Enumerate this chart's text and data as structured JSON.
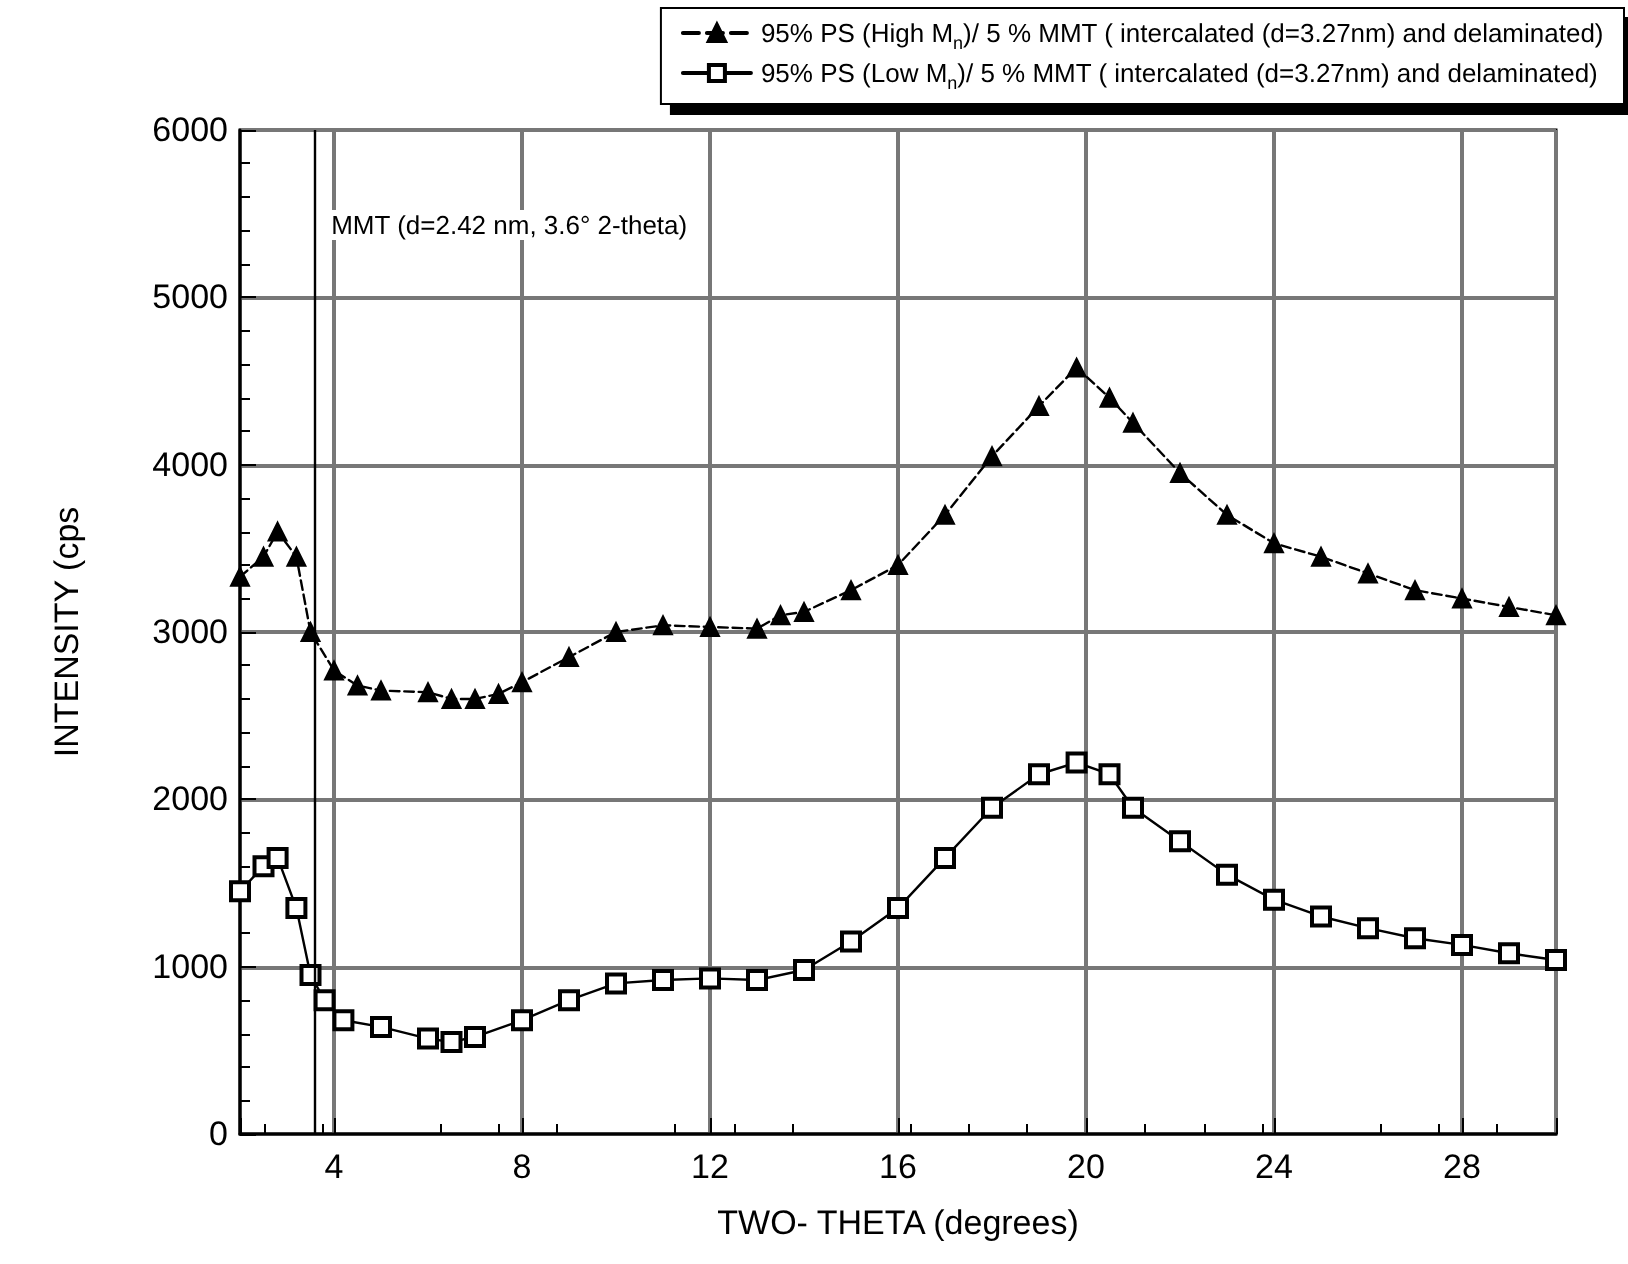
{
  "chart_data": {
    "type": "line",
    "xlabel": "TWO- THETA (degrees)",
    "ylabel": "INTENSITY (cps",
    "xlim": [
      2,
      30
    ],
    "xticks": [
      {
        "value": 2,
        "label": null
      },
      4,
      8,
      12,
      16,
      20,
      24,
      28,
      {
        "value": 30,
        "label": null
      }
    ],
    "ylim": [
      0,
      6000
    ],
    "yticks": [
      0,
      1000,
      2000,
      3000,
      4000,
      5000,
      6000
    ],
    "grid": true,
    "legend": "top right",
    "ref_lines": [
      {
        "axis": "x",
        "value": 3.6,
        "label": "MMT (d=2.42 nm, 3.6° 2-theta)"
      }
    ],
    "series": [
      {
        "name": "95% PS (High M$_{n}$)/ 5 % MMT ( intercalated (d=3.27nm) and delaminated)",
        "color": "#000000",
        "marker": "triangle",
        "line_style": "dashed",
        "x": [
          2.0,
          2.5,
          2.8,
          3.2,
          3.5,
          4.0,
          4.5,
          5,
          6,
          6.5,
          7,
          7.5,
          8,
          9,
          10,
          11,
          12,
          13,
          13.5,
          14,
          15,
          16,
          17,
          18,
          19,
          19.8,
          20.5,
          21,
          22,
          23,
          24,
          25,
          26,
          27,
          28,
          29,
          30
        ],
        "values": [
          3330,
          3450,
          3600,
          3450,
          3000,
          2770,
          2680,
          2650,
          2640,
          2600,
          2600,
          2630,
          2700,
          2850,
          3000,
          3040,
          3030,
          3020,
          3100,
          3120,
          3250,
          3400,
          3700,
          4050,
          4350,
          4580,
          4400,
          4250,
          3950,
          3700,
          3530,
          3450,
          3350,
          3250,
          3200,
          3150,
          3100
        ]
      },
      {
        "name": "95% PS (Low M$_{n}$)/ 5 % MMT ( intercalated (d=3.27nm) and delaminated)",
        "color": "#000000",
        "marker": "square",
        "line_style": "solid",
        "x": [
          2.0,
          2.5,
          2.8,
          3.2,
          3.5,
          3.8,
          4.2,
          5,
          6,
          6.5,
          7,
          8,
          9,
          10,
          11,
          12,
          13,
          14,
          15,
          16,
          17,
          18,
          19,
          19.8,
          20.5,
          21,
          22,
          23,
          24,
          25,
          26,
          27,
          28,
          29,
          30
        ],
        "values": [
          1450,
          1600,
          1650,
          1350,
          950,
          800,
          680,
          640,
          570,
          550,
          580,
          680,
          800,
          900,
          920,
          930,
          920,
          980,
          1150,
          1350,
          1650,
          1950,
          2150,
          2220,
          2150,
          1950,
          1750,
          1550,
          1400,
          1300,
          1230,
          1170,
          1130,
          1080,
          1040
        ]
      }
    ]
  }
}
